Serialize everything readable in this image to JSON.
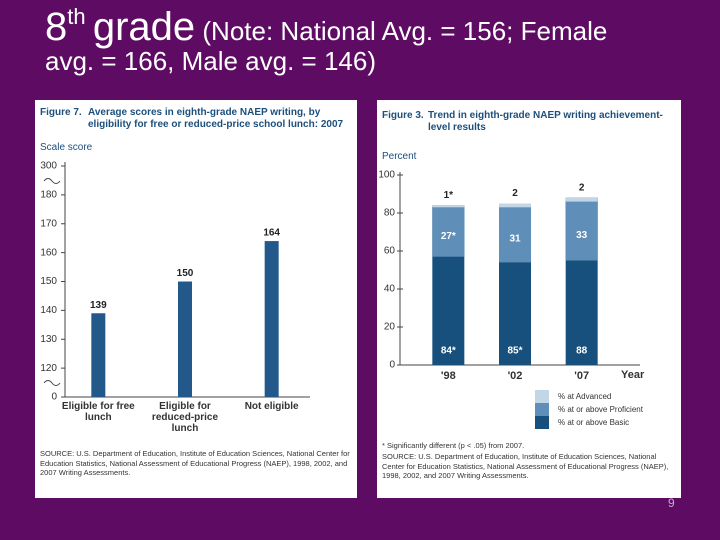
{
  "slide": {
    "grade": "8",
    "ordinal": "th",
    "title": "grade",
    "note": "(Note: National Avg. = 156; Female avg. = 166, Male avg. = 146)",
    "page_number": "9"
  },
  "chart_data": [
    {
      "type": "bar",
      "title": "Figure 7.",
      "subtitle": "Average scores in eighth-grade NAEP writing, by eligibility for free or reduced-price school lunch: 2007",
      "y_label": "Scale score",
      "categories": [
        "Eligible for free lunch",
        "Eligible for reduced-price lunch",
        "Not eligible"
      ],
      "values": [
        139,
        150,
        164
      ],
      "color": "#23598a",
      "ylim": [
        0,
        300
      ],
      "yticks": [
        0,
        120,
        130,
        140,
        150,
        160,
        170,
        180,
        300
      ],
      "axis_break": true,
      "source": "SOURCE: U.S. Department of Education, Institute of Education Sciences, National Center for Education Statistics, National Assessment of Educational Progress (NAEP), 1998, 2002, and 2007 Writing Assessments."
    },
    {
      "type": "level_bar",
      "title": "Figure 3.",
      "subtitle": "Trend in eighth-grade NAEP writing achievement-level results",
      "y_label": "Percent",
      "x_label": "Year",
      "categories": [
        "'98",
        "'02",
        "'07"
      ],
      "series": [
        {
          "name": "% at or above Basic",
          "color": "#17507c",
          "values": [
            84,
            85,
            88
          ],
          "value_labels": [
            "84*",
            "85*",
            "88"
          ]
        },
        {
          "name": "% at or above Proficient",
          "color": "#5f8fb8",
          "values": [
            27,
            31,
            33
          ],
          "value_labels": [
            "27*",
            "31",
            "33"
          ]
        },
        {
          "name": "% at Advanced",
          "color": "#c2d6e6",
          "values": [
            1,
            2,
            2
          ],
          "value_labels": [
            "1*",
            "2",
            "2"
          ]
        }
      ],
      "ylim": [
        0,
        100
      ],
      "yticks": [
        0,
        20,
        40,
        60,
        80,
        100
      ],
      "footnote": "* Significantly different (p < .05) from 2007.",
      "source": "SOURCE: U.S. Department of Education, Institute of Education Sciences, National Center for Education Statistics, National Assessment of Educational Progress (NAEP), 1998, 2002, and 2007 Writing Assessments."
    }
  ]
}
